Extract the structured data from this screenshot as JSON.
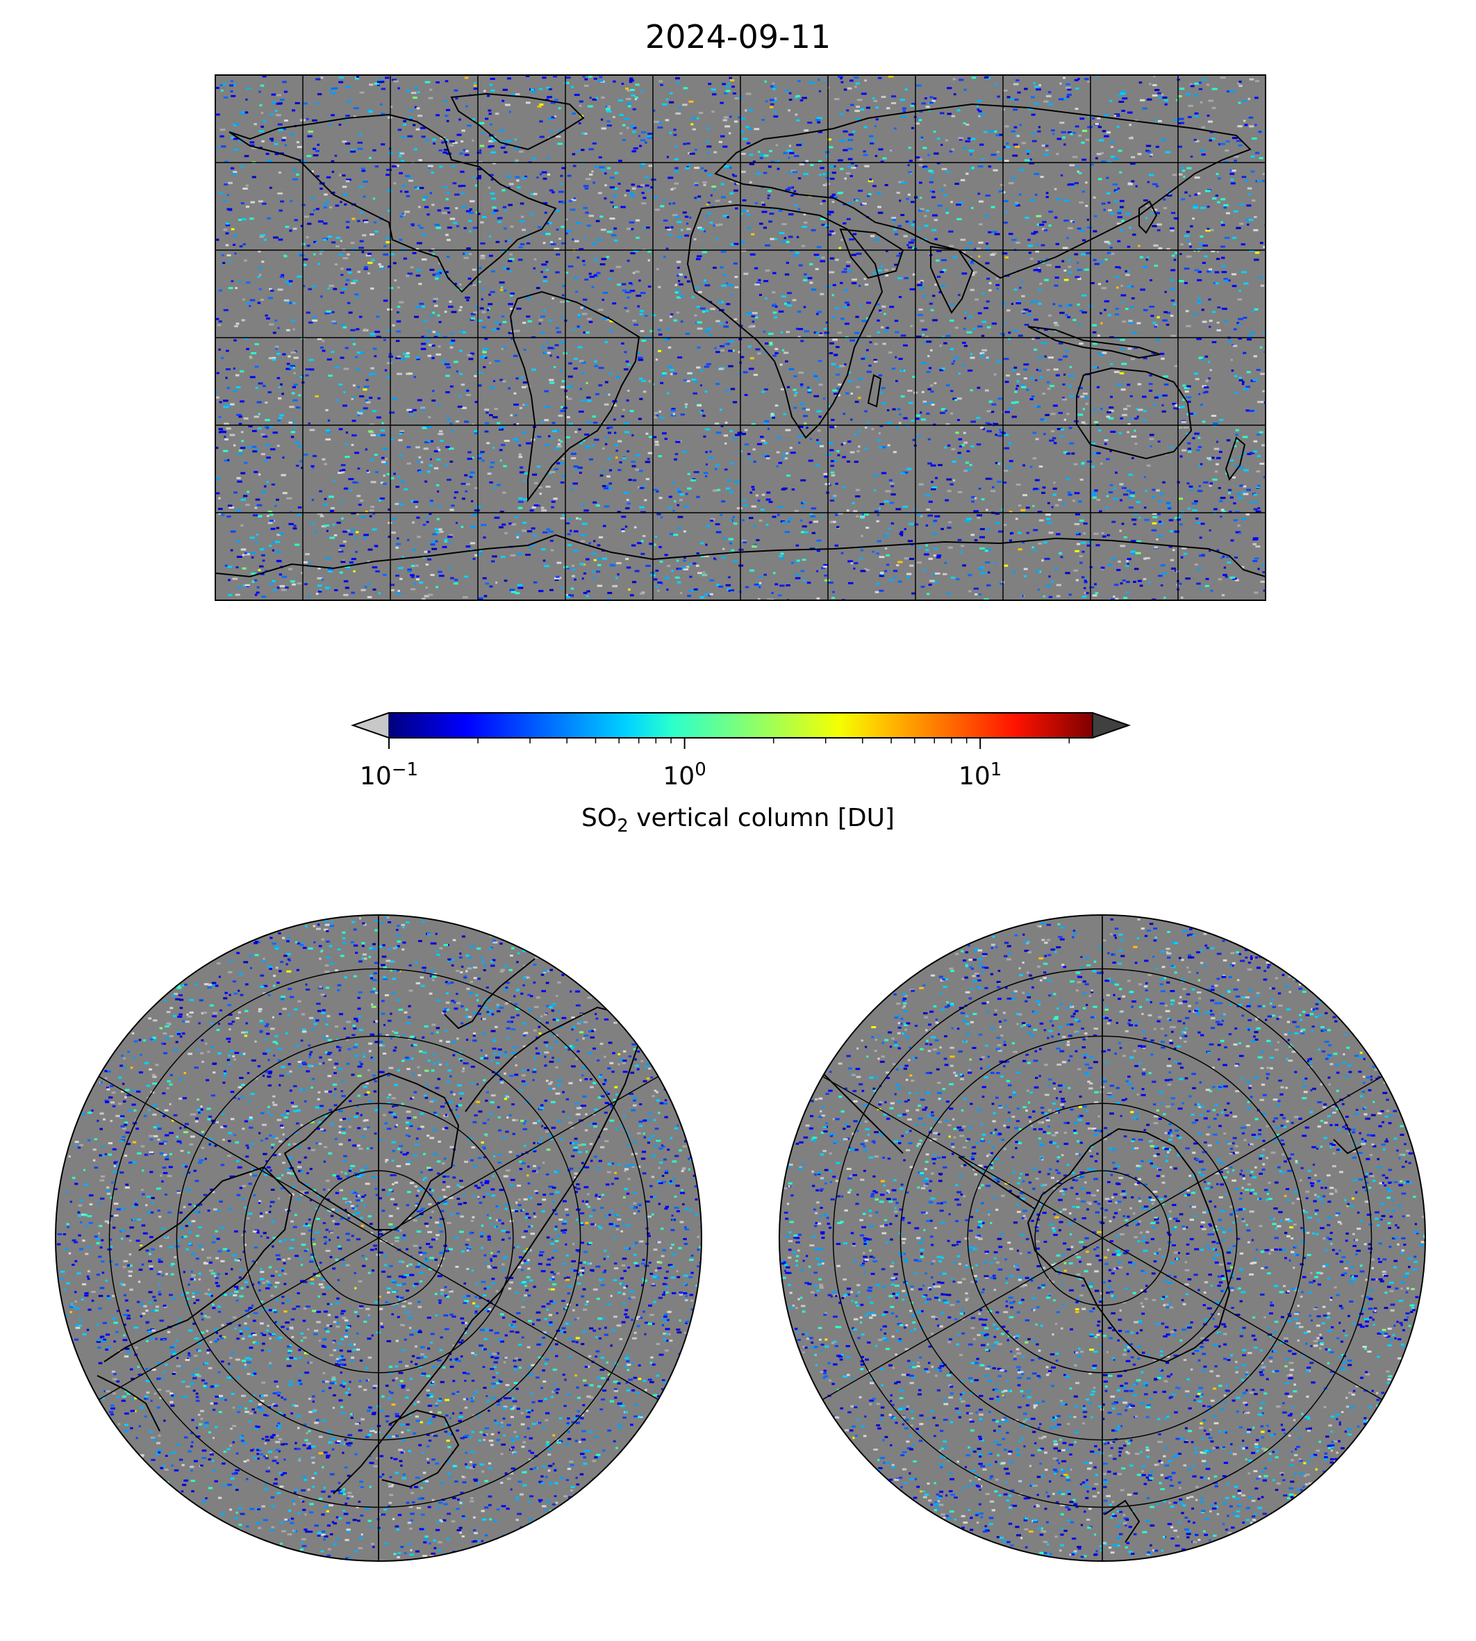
{
  "title": "2024-09-11",
  "colorbar": {
    "label_prefix": "SO",
    "label_subscript": "2",
    "label_suffix": " vertical column [DU]",
    "scale": "log",
    "range": [
      0.1,
      24
    ],
    "colormap": "jet",
    "under_color": "#c8c8c8",
    "over_color": "#404040",
    "ticks": [
      {
        "base": "10",
        "exp": "−1",
        "value": 0.1
      },
      {
        "base": "10",
        "exp": "0",
        "value": 1
      },
      {
        "base": "10",
        "exp": "1",
        "value": 10
      }
    ]
  },
  "maps": [
    {
      "name": "global-equirectangular",
      "projection": "PlateCarree",
      "gridlines_deg": [
        30,
        30
      ]
    },
    {
      "name": "north-polar",
      "projection": "NorthPolarStereo",
      "parallels_deg": [
        75,
        60,
        45,
        30
      ],
      "meridians_deg": 60
    },
    {
      "name": "south-polar",
      "projection": "SouthPolarStereo",
      "parallels_deg": [
        -75,
        -60,
        -45,
        -30
      ],
      "meridians_deg": 60
    }
  ],
  "colors": {
    "ocean_background": "#808080",
    "gridline": "#000000",
    "coastline": "#000000"
  }
}
